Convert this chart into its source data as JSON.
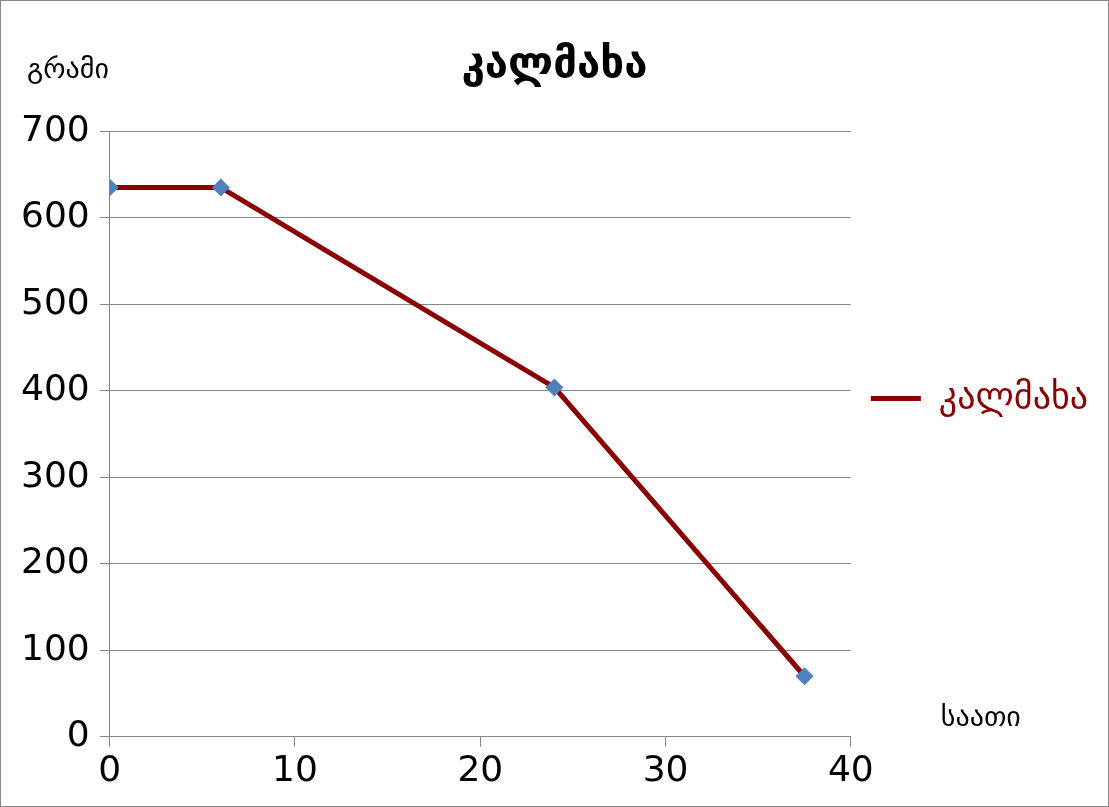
{
  "chart_data": {
    "type": "line",
    "title": "კალმახა",
    "xlabel": "საათი",
    "ylabel": "გრამი",
    "x": [
      0,
      6,
      24,
      37.5
    ],
    "series": [
      {
        "name": "კალმახა",
        "color": "#8b0000",
        "colors": [
          "#4f81bd",
          "#4f81bd",
          "#4f81bd",
          "#4f81bd"
        ],
        "values": [
          635,
          635,
          404,
          70
        ]
      }
    ],
    "xlim": [
      0,
      40
    ],
    "xticks": [
      0,
      10,
      20,
      30,
      40
    ],
    "ylim": [
      0,
      700
    ],
    "yticks": [
      0,
      100,
      200,
      300,
      400,
      500,
      600,
      700
    ],
    "grid": "y",
    "legend": "right",
    "marker": "diamond",
    "line_style": "solid"
  }
}
